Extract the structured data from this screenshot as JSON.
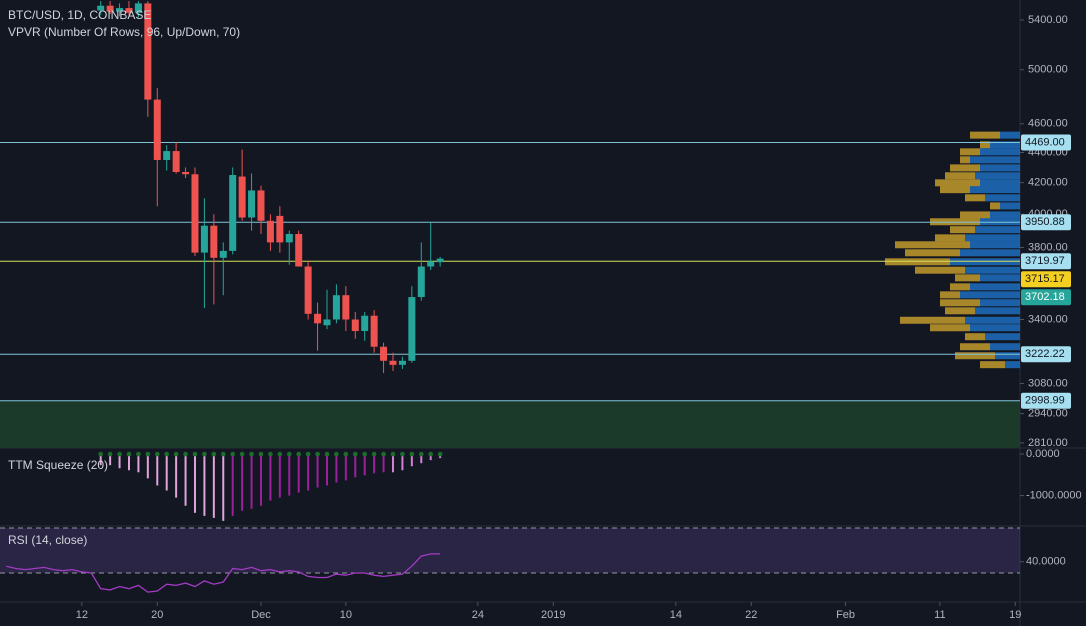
{
  "chart_data": [
    {
      "type": "candlestick",
      "title": "BTC/USD, 1D, COINBASE",
      "xlim": [
        3.32,
        111.5
      ],
      "ylim": [
        2788,
        5569
      ],
      "log": true,
      "yticks": [
        {
          "value": 5400,
          "label": "5400.00"
        },
        {
          "value": 5000,
          "label": "5000.00"
        },
        {
          "value": 4600,
          "label": "4600.00"
        },
        {
          "value": 4400,
          "label": "4400.00"
        },
        {
          "value": 4200,
          "label": "4200.00"
        },
        {
          "value": 4000,
          "label": "4000.00"
        },
        {
          "value": 3800,
          "label": "3800.00"
        },
        {
          "value": 3400,
          "label": "3400.00"
        },
        {
          "value": 3080,
          "label": "3080.00"
        },
        {
          "value": 2940,
          "label": "2940.00"
        },
        {
          "value": 2810,
          "label": "2810.00"
        }
      ],
      "x": [
        14,
        15,
        16,
        17,
        18,
        19,
        20,
        21,
        22,
        23,
        24,
        25,
        26,
        27,
        28,
        29,
        30,
        31,
        32,
        33,
        34,
        35,
        36,
        37,
        38,
        39,
        40,
        41,
        42,
        43,
        44,
        45,
        46,
        47,
        48,
        49,
        50
      ],
      "open": [
        5480,
        5520,
        5470,
        5500,
        5460,
        5540,
        4775,
        4350,
        4410,
        4270,
        4255,
        3770,
        3930,
        3740,
        3780,
        4240,
        3980,
        4150,
        3960,
        3990,
        3830,
        3880,
        3690,
        3430,
        3370,
        3400,
        3530,
        3400,
        3340,
        3420,
        3260,
        3190,
        3170,
        3190,
        3520,
        3690,
        3715
      ],
      "high": [
        5560,
        5560,
        5540,
        5560,
        5560,
        5560,
        4860,
        4450,
        4470,
        4300,
        4300,
        4100,
        4000,
        3830,
        4300,
        4420,
        4260,
        4180,
        4000,
        4050,
        3900,
        3900,
        3720,
        3490,
        3560,
        3590,
        3580,
        3440,
        3440,
        3450,
        3280,
        3230,
        3210,
        3580,
        3830,
        3950,
        3745
      ],
      "low": [
        5440,
        5450,
        5430,
        5440,
        5420,
        4650,
        4050,
        4280,
        4260,
        4230,
        3750,
        3460,
        3480,
        3530,
        3760,
        3960,
        3900,
        3880,
        3780,
        3770,
        3700,
        3690,
        3400,
        3240,
        3350,
        3380,
        3340,
        3300,
        3290,
        3230,
        3130,
        3140,
        3150,
        3180,
        3500,
        3670,
        3690
      ],
      "close": [
        5520,
        5470,
        5500,
        5460,
        5540,
        4775,
        4350,
        4410,
        4270,
        4255,
        3770,
        3930,
        3740,
        3780,
        4250,
        3980,
        4150,
        3960,
        3830,
        3830,
        3880,
        3690,
        3430,
        3380,
        3400,
        3530,
        3400,
        3340,
        3420,
        3260,
        3190,
        3170,
        3190,
        3520,
        3690,
        3720,
        3735
      ],
      "up_color": "#26a69a",
      "down_color": "#ef5350",
      "vpvr": {
        "title": "VPVR (Number Of Rows, 96, Up/Down, 70)",
        "up_color": "#1f6fbf",
        "down_color": "#c39a2b",
        "price": [
          4520,
          4453,
          4405,
          4351,
          4297,
          4245,
          4199,
          4155,
          4103,
          4052,
          3996,
          3954,
          3906,
          3857,
          3816,
          3769,
          3717,
          3669,
          3626,
          3576,
          3532,
          3489,
          3446,
          3396,
          3357,
          3311,
          3260,
          3215,
          3171
        ],
        "up": [
          20,
          30,
          40,
          50,
          40,
          45,
          40,
          50,
          35,
          20,
          30,
          40,
          45,
          55,
          50,
          60,
          70,
          55,
          40,
          50,
          60,
          40,
          45,
          55,
          50,
          35,
          30,
          25,
          15
        ],
        "down": [
          30,
          10,
          20,
          10,
          30,
          30,
          45,
          30,
          20,
          10,
          30,
          50,
          25,
          30,
          75,
          55,
          65,
          50,
          25,
          20,
          20,
          40,
          30,
          65,
          40,
          20,
          30,
          40,
          25
        ]
      },
      "levels": [
        {
          "value": 4469,
          "label": "4469.00",
          "color": "#a5dff0",
          "text_color": "#131722",
          "line_color": "#7fc4d8"
        },
        {
          "value": 3950.88,
          "color": "#a5dff0",
          "text_color": "#131722",
          "line_color": "#7fc4d8"
        },
        {
          "value": 3719.97,
          "color": "#a5dff0",
          "text_color": "#131722",
          "line_color": "#d4e157"
        },
        {
          "value": 3715.17,
          "color": "#f5d020",
          "text_color": "#131722"
        },
        {
          "value": 3702.18,
          "color": "#26a69a",
          "text_color": "#ffffff"
        },
        {
          "value": 3222.22,
          "color": "#a5dff0",
          "text_color": "#131722",
          "line_color": "#7fc4d8"
        },
        {
          "value": 2998.99,
          "color": "#a5dff0",
          "text_color": "#131722",
          "line_color": "#7fc4d8"
        }
      ]
    },
    {
      "type": "histogram",
      "title": "TTM Squeeze (20)",
      "xlim": [
        3.32,
        111.5
      ],
      "ylim": [
        -1732,
        146
      ],
      "yticks": [
        {
          "value": 0,
          "label": "0.0000"
        },
        {
          "value": -1000,
          "label": "-1000.0000"
        }
      ],
      "x": [
        14,
        15,
        16,
        17,
        18,
        19,
        20,
        21,
        22,
        23,
        24,
        25,
        26,
        27,
        28,
        29,
        30,
        31,
        32,
        33,
        34,
        35,
        36,
        37,
        38,
        39,
        40,
        41,
        42,
        43,
        44,
        45,
        46,
        47,
        48,
        49,
        50
      ],
      "values": [
        -268,
        -268,
        -341,
        -390,
        -439,
        -585,
        -756,
        -878,
        -1049,
        -1244,
        -1415,
        -1488,
        -1537,
        -1610,
        -1488,
        -1366,
        -1317,
        -1244,
        -1122,
        -1049,
        -1000,
        -927,
        -878,
        -805,
        -756,
        -683,
        -634,
        -561,
        -512,
        -463,
        -439,
        -439,
        -390,
        -293,
        -220,
        -146,
        -98
      ],
      "colors": [
        "#e1a3dc",
        "#e1a3dc",
        "#e1a3dc",
        "#e1a3dc",
        "#e1a3dc",
        "#e1a3dc",
        "#e1a3dc",
        "#e1a3dc",
        "#e1a3dc",
        "#e1a3dc",
        "#e1a3dc",
        "#e1a3dc",
        "#e1a3dc",
        "#e1a3dc",
        "#9c1f9c",
        "#9c1f9c",
        "#9c1f9c",
        "#9c1f9c",
        "#9c1f9c",
        "#9c1f9c",
        "#9c1f9c",
        "#9c1f9c",
        "#9c1f9c",
        "#9c1f9c",
        "#9c1f9c",
        "#9c1f9c",
        "#9c1f9c",
        "#9c1f9c",
        "#9c1f9c",
        "#9c1f9c",
        "#9c1f9c",
        "#d77fd6",
        "#d77fd6",
        "#d77fd6",
        "#d77fd6",
        "#d77fd6",
        "#d77fd6"
      ],
      "dot_color": "#1b6e2a"
    },
    {
      "type": "line",
      "title": "RSI (14, close)",
      "xlim": [
        3.32,
        111.5
      ],
      "ylim": [
        4.2,
        70.9
      ],
      "band": [
        30,
        70
      ],
      "band_color": "#7e57c2",
      "color": "#a33bc5",
      "yticks": [
        {
          "value": 40,
          "label": "40.0000"
        }
      ],
      "xticks": [
        12,
        20,
        {
          "value": 31,
          "label": "Dec"
        },
        {
          "value": 40,
          "label": "10"
        },
        {
          "value": 54,
          "label": "24"
        },
        {
          "value": 62,
          "label": "2019"
        },
        {
          "value": 75,
          "label": "14"
        },
        {
          "value": 83,
          "label": "22"
        },
        {
          "value": 93,
          "label": "Feb"
        },
        {
          "value": 103,
          "label": "11"
        },
        {
          "value": 111,
          "label": "19"
        }
      ],
      "x": [
        4,
        5,
        6,
        7,
        8,
        9,
        10,
        11,
        12,
        13,
        14,
        15,
        16,
        17,
        18,
        19,
        20,
        21,
        22,
        23,
        24,
        25,
        26,
        27,
        28,
        29,
        30,
        31,
        32,
        33,
        34,
        35,
        36,
        37,
        38,
        39,
        40,
        41,
        42,
        43,
        44,
        45,
        46,
        47,
        48,
        49,
        50
      ],
      "values": [
        36,
        34,
        33,
        34,
        35,
        33,
        32,
        33,
        31,
        30,
        16,
        15,
        18,
        16,
        19,
        13,
        14,
        20,
        19,
        21,
        18,
        23,
        20,
        22,
        34,
        33,
        35,
        32,
        33,
        31,
        32,
        31,
        27,
        26,
        26,
        29,
        28,
        30,
        30,
        28,
        27,
        28,
        29,
        36,
        45,
        47,
        47
      ]
    }
  ]
}
